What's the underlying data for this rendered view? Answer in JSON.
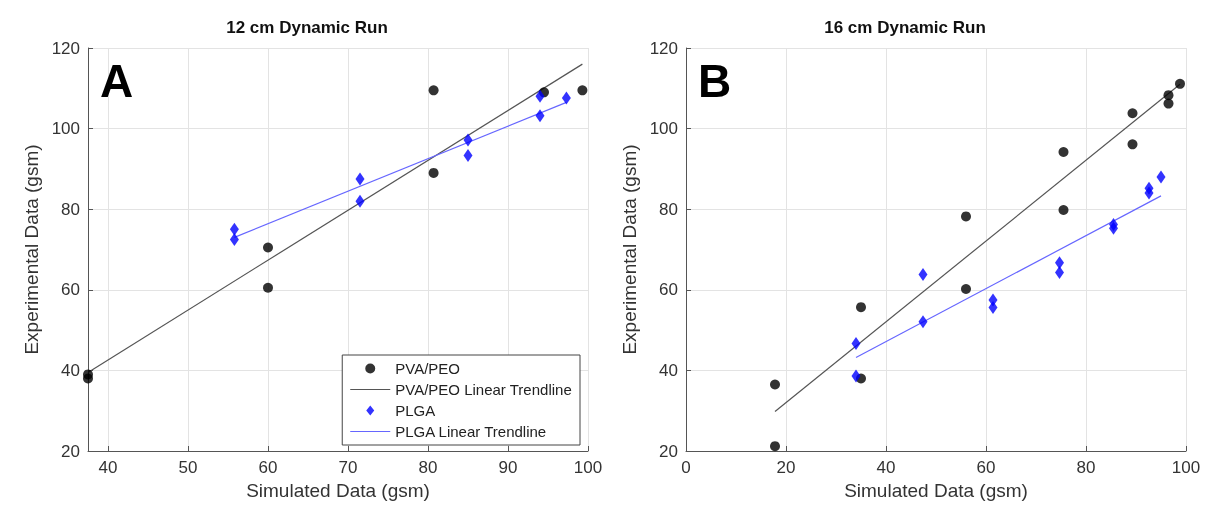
{
  "chart_data": [
    {
      "type": "scatter",
      "title": "12 cm Dynamic Run",
      "xlabel": "Simulated Data (gsm)",
      "ylabel": "Experimental Data (gsm)",
      "annotations": [
        "A"
      ],
      "xlim": [
        37.5,
        100
      ],
      "xticks": [
        40,
        50,
        60,
        70,
        80,
        90,
        100
      ],
      "ylim": [
        20,
        120
      ],
      "yticks": [
        20,
        40,
        60,
        80,
        100,
        120
      ],
      "grid": true,
      "legend": "bottom right",
      "series": [
        {
          "name": "PVA/PEO",
          "marker": "circle",
          "color": "#000000",
          "x": [
            37.5,
            37.5,
            60,
            60,
            80.7,
            80.7,
            94.5,
            99.3
          ],
          "values": [
            39,
            38,
            70.5,
            60.5,
            109.5,
            89,
            109,
            109.5
          ]
        },
        {
          "name": "PVA/PEO Linear Trendline",
          "type": "line",
          "color": "#555555",
          "x": [
            37.5,
            99.3
          ],
          "values": [
            39.5,
            116
          ]
        },
        {
          "name": "PLGA",
          "marker": "diamond",
          "color": "#0000ff",
          "x": [
            55.8,
            55.8,
            71.5,
            71.5,
            85,
            85,
            94,
            94,
            97.3
          ],
          "values": [
            75,
            72.5,
            87.5,
            82,
            97.2,
            93.3,
            108,
            103.2,
            107.6
          ]
        },
        {
          "name": "PLGA Linear Trendline",
          "type": "line",
          "color": "#6666ff",
          "x": [
            55.8,
            97.3
          ],
          "values": [
            73,
            106.5
          ]
        }
      ]
    },
    {
      "type": "scatter",
      "title": "16 cm Dynamic Run",
      "xlabel": "Simulated Data (gsm)",
      "ylabel": "Experimental Data (gsm)",
      "annotations": [
        "B"
      ],
      "xlim": [
        0,
        100
      ],
      "xticks": [
        0,
        20,
        40,
        60,
        80,
        100
      ],
      "ylim": [
        20,
        120
      ],
      "yticks": [
        20,
        40,
        60,
        80,
        100,
        120
      ],
      "grid": true,
      "series": [
        {
          "marker": "circle",
          "color": "#000000",
          "x": [
            17.8,
            17.8,
            35,
            35,
            56,
            56,
            75.5,
            75.5,
            89.3,
            89.3,
            96.5,
            96.5,
            98.8
          ],
          "values": [
            36.5,
            21.2,
            55.7,
            38,
            78.2,
            60.2,
            94.2,
            79.8,
            103.8,
            96.1,
            108.3,
            106.2,
            111.1
          ]
        },
        {
          "type": "line",
          "color": "#555555",
          "x": [
            17.8,
            98.8
          ],
          "values": [
            29.8,
            111
          ]
        },
        {
          "marker": "diamond",
          "color": "#0000ff",
          "x": [
            34,
            34,
            47.4,
            47.4,
            61.4,
            61.4,
            74.7,
            74.7,
            85.5,
            85.5,
            92.6,
            92.6,
            95
          ],
          "values": [
            46.7,
            38.6,
            63.8,
            52.1,
            57.5,
            55.6,
            66.7,
            64.3,
            76.2,
            75.3,
            85.2,
            84,
            88
          ]
        },
        {
          "type": "line",
          "color": "#6666ff",
          "x": [
            34,
            95
          ],
          "values": [
            43.2,
            83.3
          ]
        }
      ]
    }
  ]
}
